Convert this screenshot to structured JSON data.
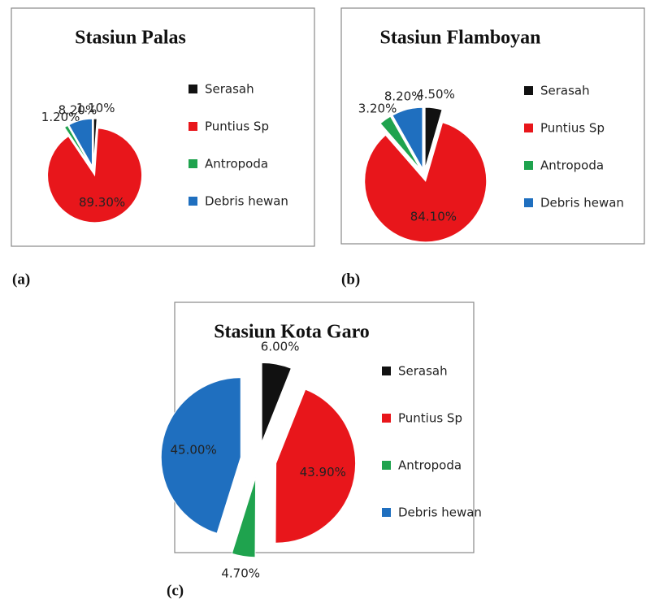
{
  "chart_data": [
    {
      "type": "pie",
      "title": "Stasiun Palas",
      "panel_label": "(a)",
      "categories": [
        "Serasah",
        "Puntius Sp",
        "Antropoda",
        "Debris hewan"
      ],
      "values": [
        1.1,
        89.3,
        1.2,
        8.2
      ],
      "value_labels": [
        "1.10%",
        "89.30%",
        "1.20%",
        "8.20%"
      ],
      "colors": [
        "#111111",
        "#e8161b",
        "#1fa34e",
        "#1f6fbf"
      ]
    },
    {
      "type": "pie",
      "title": "Stasiun Flamboyan",
      "panel_label": "(b)",
      "categories": [
        "Serasah",
        "Puntius Sp",
        "Antropoda",
        "Debris hewan"
      ],
      "values": [
        4.5,
        84.1,
        3.2,
        8.2
      ],
      "value_labels": [
        "4.50%",
        "84.10%",
        "3.20%",
        "8.20%"
      ],
      "colors": [
        "#111111",
        "#e8161b",
        "#1fa34e",
        "#1f6fbf"
      ]
    },
    {
      "type": "pie",
      "title": "Stasiun Kota Garo",
      "panel_label": "(c)",
      "categories": [
        "Serasah",
        "Puntius Sp",
        "Antropoda",
        "Debris hewan"
      ],
      "values": [
        6.0,
        43.9,
        4.7,
        45.0
      ],
      "value_labels": [
        "6.00%",
        "43.90%",
        "4.70%",
        "45.00%"
      ],
      "colors": [
        "#111111",
        "#e8161b",
        "#1fa34e",
        "#1f6fbf"
      ]
    }
  ]
}
